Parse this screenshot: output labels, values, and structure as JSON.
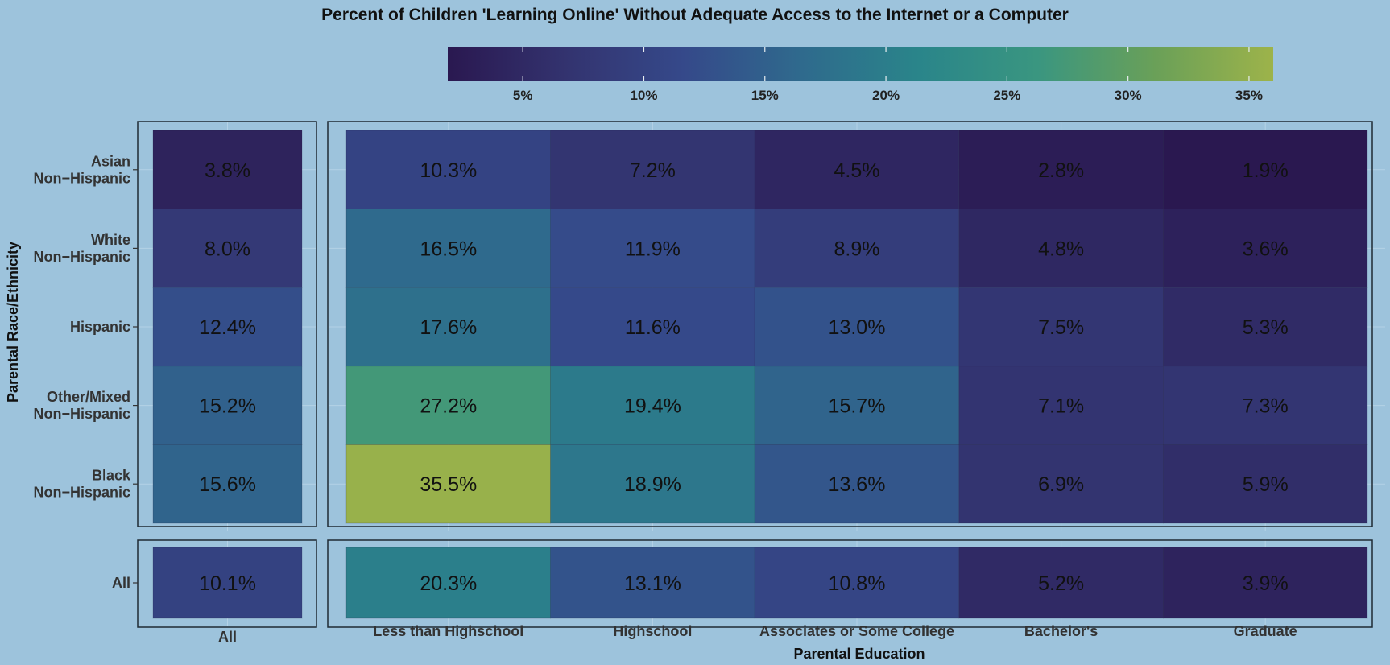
{
  "chart_data": {
    "type": "heatmap",
    "title": "Percent of Children 'Learning Online' Without Adequate Access to the Internet or a Computer",
    "xlabel": "Parental Education",
    "ylabel": "Parental Race/Ethnicity",
    "rows": [
      [
        "Asian",
        "Non−Hispanic"
      ],
      [
        "White",
        "Non−Hispanic"
      ],
      [
        "Hispanic"
      ],
      [
        "Other/Mixed",
        "Non−Hispanic"
      ],
      [
        "Black",
        "Non−Hispanic"
      ]
    ],
    "summary_row_label": "All",
    "summary_col_label": "All",
    "columns": [
      "Less than Highschool",
      "Highschool",
      "Associates or Some College",
      "Bachelor's",
      "Graduate"
    ],
    "values": [
      [
        10.3,
        7.2,
        4.5,
        2.8,
        1.9
      ],
      [
        16.5,
        11.9,
        8.9,
        4.8,
        3.6
      ],
      [
        17.6,
        11.6,
        13.0,
        7.5,
        5.3
      ],
      [
        27.2,
        19.4,
        15.7,
        7.1,
        7.3
      ],
      [
        35.5,
        18.9,
        13.6,
        6.9,
        5.9
      ]
    ],
    "row_totals": [
      3.8,
      8.0,
      12.4,
      15.2,
      15.6
    ],
    "col_totals": [
      20.3,
      13.1,
      10.8,
      5.2,
      3.9
    ],
    "overall_total": 10.1,
    "value_suffix": "%",
    "color_scale": {
      "name": "viridis",
      "min": 1.9,
      "max": 36,
      "stops": [
        "#2a1850",
        "#33336f",
        "#35498a",
        "#2f6a8d",
        "#2a858a",
        "#3a9680",
        "#6aa058",
        "#9db34a"
      ]
    },
    "legend": {
      "position": "top",
      "ticks": [
        5,
        10,
        15,
        20,
        25,
        30,
        35
      ],
      "tick_labels": [
        "5%",
        "10%",
        "15%",
        "20%",
        "25%",
        "30%",
        "35%"
      ]
    }
  }
}
